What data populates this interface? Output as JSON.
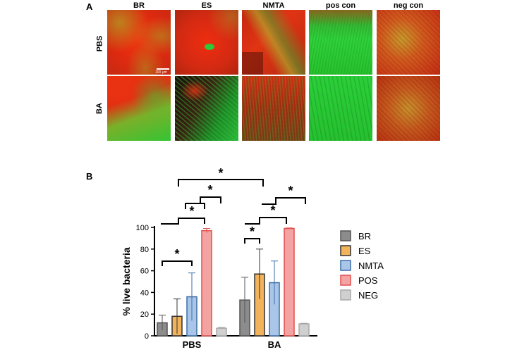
{
  "panel_a": {
    "label": "A",
    "columns": [
      "BR",
      "ES",
      "NMTA",
      "pos con",
      "neg con"
    ],
    "rows": [
      "PBS",
      "BA"
    ],
    "scale_bar_text": "100 µm"
  },
  "panel_b": {
    "label": "B",
    "significance_marker": "*"
  },
  "chart_data": {
    "type": "bar",
    "categories": [
      "PBS",
      "BA"
    ],
    "ylabel": "% live bacteria",
    "xlabel": "",
    "ylim": [
      0,
      100
    ],
    "yticks": [
      0,
      20,
      40,
      60,
      80,
      100
    ],
    "legend_position": "right",
    "series": [
      {
        "name": "BR",
        "values": [
          12,
          33
        ],
        "errors": [
          7,
          21
        ],
        "fill": "#8c8c8c",
        "stroke": "#555555"
      },
      {
        "name": "ES",
        "values": [
          18,
          57
        ],
        "errors": [
          16,
          23
        ],
        "fill": "#f2b35a",
        "stroke": "#333333"
      },
      {
        "name": "NMTA",
        "values": [
          36,
          49
        ],
        "errors": [
          22,
          20
        ],
        "fill": "#a9c6e8",
        "stroke": "#3d6fa8"
      },
      {
        "name": "POS",
        "values": [
          97,
          99
        ],
        "errors": [
          2,
          0.5
        ],
        "fill": "#f4a3a3",
        "stroke": "#e0504f"
      },
      {
        "name": "NEG",
        "values": [
          7,
          11
        ],
        "errors": [
          0.7,
          0.6
        ],
        "fill": "#d0d0d0",
        "stroke": "#a8a8a8"
      }
    ]
  }
}
